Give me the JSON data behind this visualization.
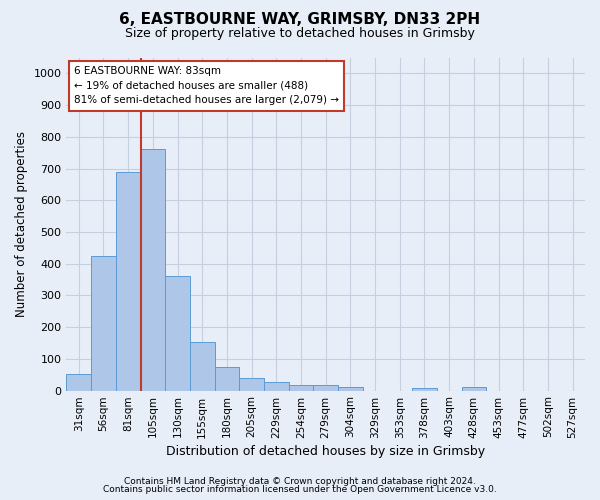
{
  "title": "6, EASTBOURNE WAY, GRIMSBY, DN33 2PH",
  "subtitle": "Size of property relative to detached houses in Grimsby",
  "xlabel": "Distribution of detached houses by size in Grimsby",
  "ylabel": "Number of detached properties",
  "categories": [
    "31sqm",
    "56sqm",
    "81sqm",
    "105sqm",
    "130sqm",
    "155sqm",
    "180sqm",
    "205sqm",
    "229sqm",
    "254sqm",
    "279sqm",
    "304sqm",
    "329sqm",
    "353sqm",
    "378sqm",
    "403sqm",
    "428sqm",
    "453sqm",
    "477sqm",
    "502sqm",
    "527sqm"
  ],
  "values": [
    52,
    425,
    688,
    760,
    362,
    153,
    75,
    40,
    28,
    18,
    17,
    10,
    0,
    0,
    8,
    0,
    12,
    0,
    0,
    0,
    0
  ],
  "bar_color": "#aec6e8",
  "bar_edge_color": "#5b9bd5",
  "vline_x": 2.5,
  "vline_color": "#c0392b",
  "annotation_line1": "6 EASTBOURNE WAY: 83sqm",
  "annotation_line2": "← 19% of detached houses are smaller (488)",
  "annotation_line3": "81% of semi-detached houses are larger (2,079) →",
  "annotation_box_facecolor": "#ffffff",
  "annotation_box_edgecolor": "#c0392b",
  "ylim": [
    0,
    1050
  ],
  "yticks": [
    0,
    100,
    200,
    300,
    400,
    500,
    600,
    700,
    800,
    900,
    1000
  ],
  "footer1": "Contains HM Land Registry data © Crown copyright and database right 2024.",
  "footer2": "Contains public sector information licensed under the Open Government Licence v3.0.",
  "bg_color": "#e8eef8",
  "grid_color": "#c5cfe0"
}
